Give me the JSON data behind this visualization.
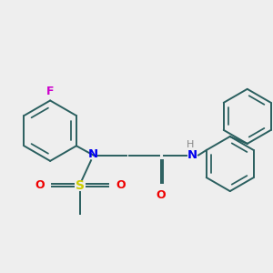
{
  "bg_color": "#eeeeee",
  "atom_colors": {
    "F": "#cc00cc",
    "N": "#0000ee",
    "O": "#ee0000",
    "S": "#cccc00",
    "H": "#888888",
    "ring": "#2a5f5f"
  },
  "ring_lw": 1.4,
  "bond_lw": 1.4
}
